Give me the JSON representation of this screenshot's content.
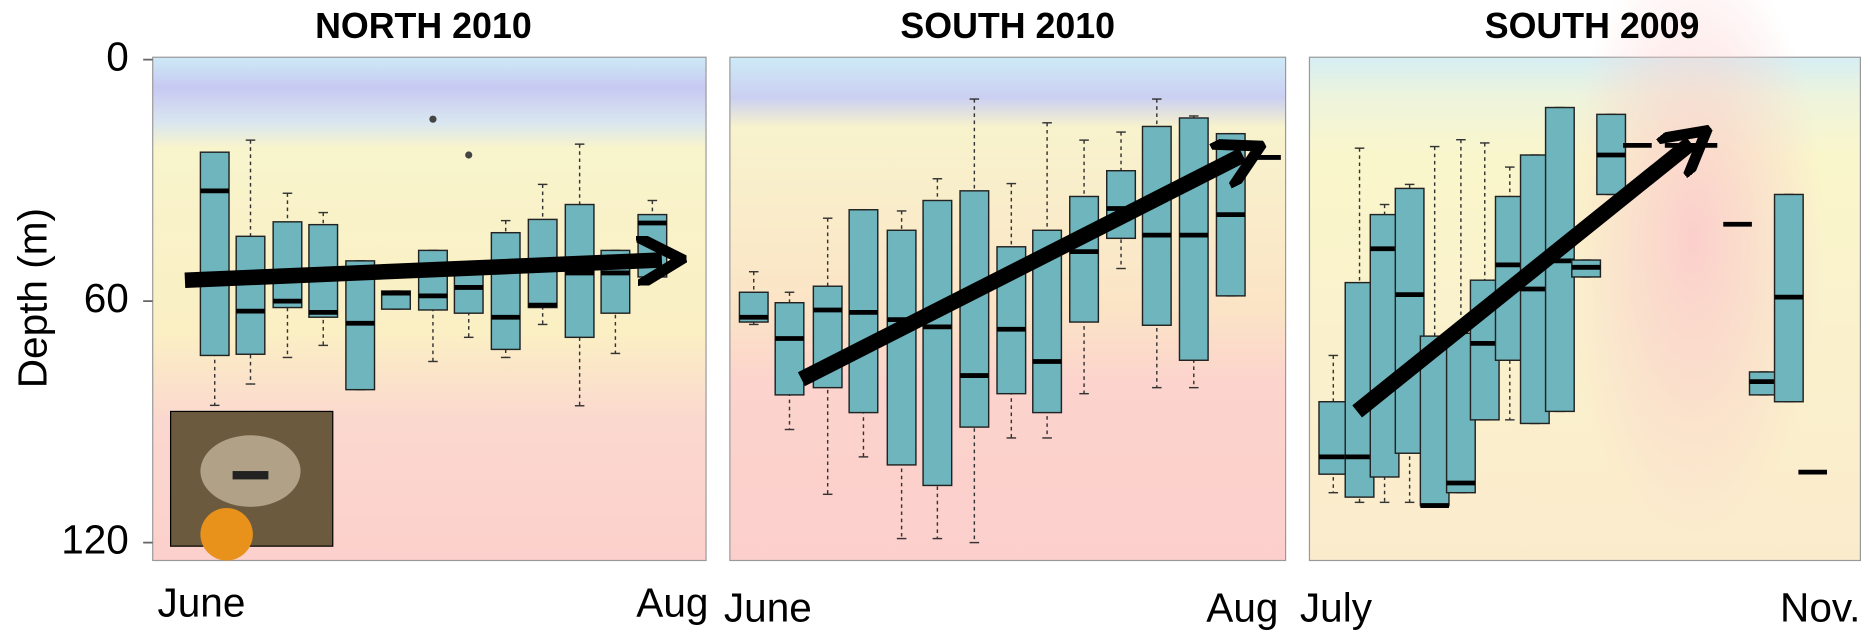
{
  "chart_data": [
    {
      "type": "box",
      "title": "NORTH 2010",
      "ylabel": "Depth (m)",
      "ylim": [
        0,
        120
      ],
      "yticks": [
        0,
        60,
        120
      ],
      "inverted_y": true,
      "x_labels": [
        "June",
        "Aug"
      ],
      "color": "#6fb5bd",
      "boxes": [
        {
          "low": 23,
          "q1": 23,
          "median": 32.6,
          "q3": 73.5,
          "high": 85.9
        },
        {
          "low": 20,
          "q1": 43.9,
          "median": 62.5,
          "q3": 73.2,
          "high": 80.6
        },
        {
          "low": 33.2,
          "q1": 40.3,
          "median": 60,
          "q3": 61.6,
          "high": 74
        },
        {
          "low": 38,
          "q1": 41,
          "median": 62.8,
          "q3": 64,
          "high": 71
        },
        {
          "low": 50,
          "q1": 50,
          "median": 65.5,
          "q3": 82,
          "high": 82
        },
        {
          "low": 57.5,
          "q1": 57.5,
          "median": 58,
          "q3": 62,
          "high": 62
        },
        {
          "low": 47.4,
          "q1": 47.4,
          "median": 58.7,
          "q3": 62.2,
          "high": 75
        },
        {
          "low": 52,
          "q1": 52,
          "median": 56.6,
          "q3": 63,
          "high": 69
        },
        {
          "low": 40,
          "q1": 43,
          "median": 64,
          "q3": 72,
          "high": 74
        },
        {
          "low": 31,
          "q1": 39.7,
          "median": 61,
          "q3": 61.6,
          "high": 65.8
        },
        {
          "low": 21,
          "q1": 36,
          "median": 53,
          "q3": 69,
          "high": 86
        },
        {
          "low": 47.4,
          "q1": 47.4,
          "median": 53,
          "q3": 63,
          "high": 73
        },
        {
          "low": 35,
          "q1": 38.5,
          "median": 40.6,
          "q3": 54,
          "high": 54
        }
      ],
      "outliers": [
        14.8,
        23.7
      ]
    },
    {
      "type": "box",
      "title": "SOUTH 2010",
      "ylim": [
        0,
        120
      ],
      "inverted_y": true,
      "x_labels": [
        "June",
        "Aug"
      ],
      "color": "#6fb5bd",
      "boxes": [
        {
          "low": 52.7,
          "q1": 57.8,
          "median": 64,
          "q3": 65.2,
          "high": 65.8
        },
        {
          "low": 57.8,
          "q1": 60.4,
          "median": 69.3,
          "q3": 83.3,
          "high": 91.9
        },
        {
          "low": 39.4,
          "q1": 56.3,
          "median": 62.2,
          "q3": 81.5,
          "high": 108
        },
        {
          "low": 37.3,
          "q1": 37.3,
          "median": 62.8,
          "q3": 87.7,
          "high": 98.7
        },
        {
          "low": 37.6,
          "q1": 42.4,
          "median": 64.6,
          "q3": 100.7,
          "high": 119
        },
        {
          "low": 29.6,
          "q1": 35,
          "median": 66.4,
          "q3": 105.8,
          "high": 119
        },
        {
          "low": 9.8,
          "q1": 32.6,
          "median": 78.5,
          "q3": 91.3,
          "high": 120
        },
        {
          "low": 30.8,
          "q1": 46.5,
          "median": 67,
          "q3": 83,
          "high": 94
        },
        {
          "low": 15.7,
          "q1": 42.4,
          "median": 75,
          "q3": 87.7,
          "high": 94
        },
        {
          "low": 20,
          "q1": 34,
          "median": 47.7,
          "q3": 65.2,
          "high": 83
        },
        {
          "low": 18,
          "q1": 27.6,
          "median": 37,
          "q3": 44.4,
          "high": 51.9
        },
        {
          "low": 9.8,
          "q1": 16.6,
          "median": 43.6,
          "q3": 66,
          "high": 81.5
        },
        {
          "low": 14,
          "q1": 14.5,
          "median": 43.6,
          "q3": 74.7,
          "high": 81.5
        },
        {
          "low": 18.4,
          "q1": 18.4,
          "median": 38.5,
          "q3": 58.7,
          "high": 58.7
        },
        {
          "low": 24.3,
          "q1": 24.3,
          "median": 24.3,
          "q3": 24.3,
          "high": 24.3
        }
      ]
    },
    {
      "type": "box",
      "title": "SOUTH 2009",
      "ylim": [
        0,
        120
      ],
      "inverted_y": true,
      "x_labels": [
        "July",
        "Nov."
      ],
      "color": "#6fb5bd",
      "boxes": [
        {
          "low": 73.5,
          "q1": 85,
          "median": 98.7,
          "q3": 103,
          "high": 107.6
        },
        {
          "low": 22,
          "q1": 55.4,
          "median": 98.7,
          "q3": 108.7,
          "high": 110
        },
        {
          "low": 36,
          "q1": 38.5,
          "median": 47,
          "q3": 103.7,
          "high": 110
        },
        {
          "low": 31,
          "q1": 32,
          "median": 58.4,
          "q3": 97.8,
          "high": 110
        },
        {
          "low": 21.6,
          "q1": 68.7,
          "median": 110.8,
          "q3": 110.8,
          "high": 110.8
        },
        {
          "low": 19.9,
          "q1": 68,
          "median": 105.2,
          "q3": 107.6,
          "high": 107.6
        },
        {
          "low": 20.7,
          "q1": 54.8,
          "median": 70.5,
          "q3": 89.5,
          "high": 89.5
        },
        {
          "low": 26.7,
          "q1": 34,
          "median": 51,
          "q3": 74.7,
          "high": 89.5
        },
        {
          "low": 23.7,
          "q1": 23.7,
          "median": 57,
          "q3": 90.4,
          "high": 90.4
        },
        {
          "low": 11.9,
          "q1": 11.9,
          "median": 50,
          "q3": 87.4,
          "high": 87.4
        },
        {
          "low": 49.8,
          "q1": 49.8,
          "median": 51.6,
          "q3": 54,
          "high": 54
        },
        {
          "low": 13.6,
          "q1": 13.6,
          "median": 23.7,
          "q3": 33.5,
          "high": 33.5
        },
        {
          "low": 21.3,
          "q1": 21.3,
          "median": 21.3,
          "q3": 21.3,
          "high": 21.3
        },
        {
          "low": 21.3,
          "q1": 21.3,
          "median": 21.3,
          "q3": 21.3,
          "high": 21.3
        },
        {
          "low": 40.9,
          "q1": 40.9,
          "median": 40.9,
          "q3": 40.9,
          "high": 40.9
        },
        {
          "low": 77.6,
          "q1": 77.6,
          "median": 80,
          "q3": 83.3,
          "high": 83.3
        },
        {
          "low": 33.5,
          "q1": 33.5,
          "median": 59,
          "q3": 85,
          "high": 85
        },
        {
          "low": 102.5,
          "q1": 102.5,
          "median": 102.5,
          "q3": 102.5,
          "high": 102.5
        }
      ]
    }
  ]
}
